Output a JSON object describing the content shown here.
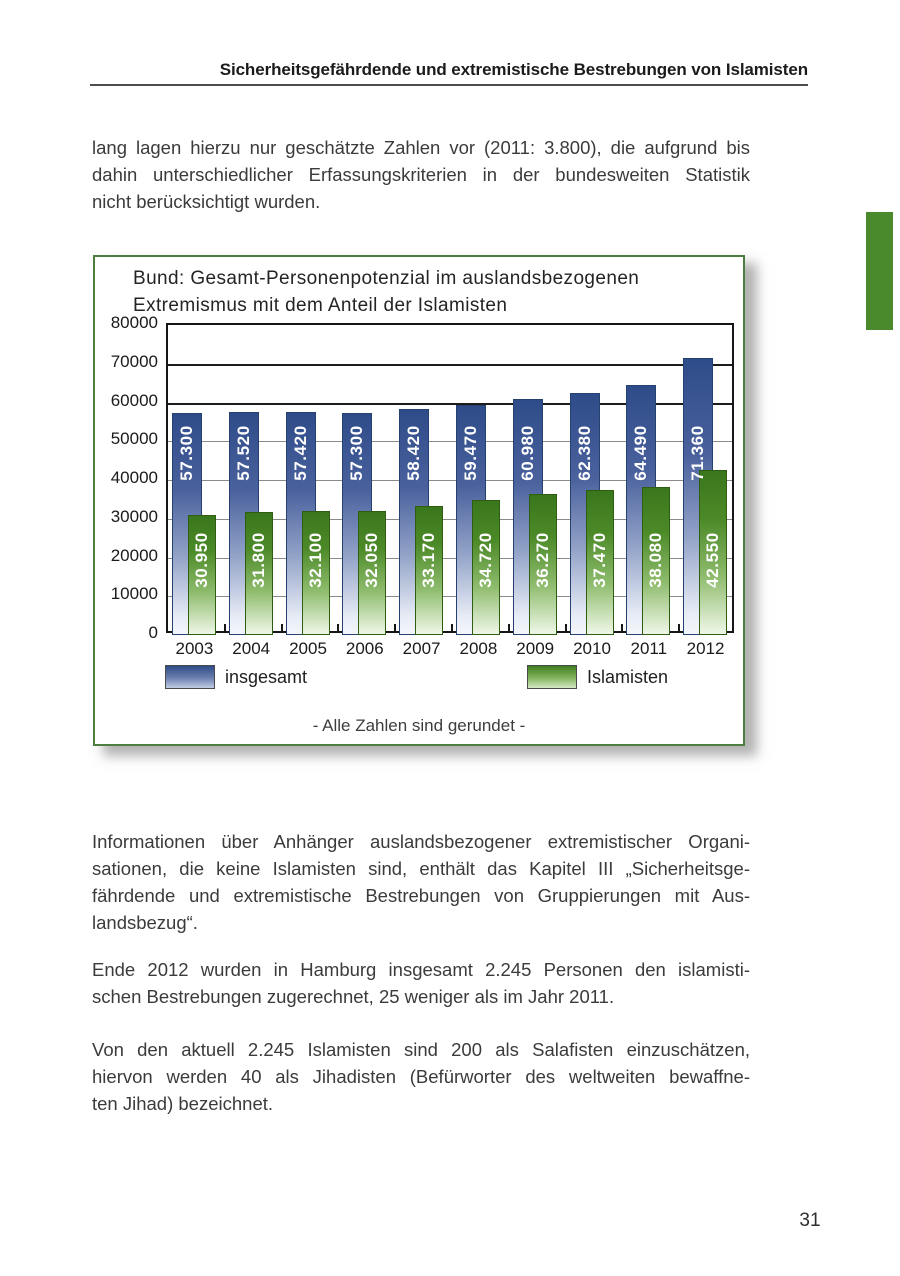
{
  "page": {
    "header": "Sicherheitsgefährdende und extremistische Bestrebungen von Islamisten",
    "page_number": "31",
    "paragraphs": [
      {
        "lines": [
          "lang lagen hierzu nur geschätzte Zahlen vor (2011: 3.800), die aufgrund bis",
          "dahin unterschiedlicher Erfassungskriterien in der bundesweiten Statistik",
          "nicht berücksichtigt wurden."
        ]
      },
      {
        "lines": [
          "Informationen über Anhänger auslandsbezogener extremistischer Organi-",
          "sationen, die keine Islamisten sind, enthält das Kapitel III „Sicherheitsge-",
          "fährdende und extremistische Bestrebungen von Gruppierungen mit Aus-",
          "landsbezug“."
        ]
      },
      {
        "lines": [
          "Ende 2012 wurden in Hamburg insgesamt 2.245 Personen den islamisti-",
          "schen Bestrebungen zugerechnet, 25 weniger als im Jahr 2011."
        ]
      },
      {
        "lines": [
          "Von den aktuell 2.245 Islamisten sind 200 als Salafisten einzuschätzen,",
          "hiervon werden 40 als Jihadisten (Befürworter des weltweiten bewaffne-",
          "ten Jihad) bezeichnet."
        ]
      }
    ]
  },
  "chart_data": {
    "type": "bar",
    "title": "Bund: Gesamt-Personenpotenzial im auslandsbezogenen Extremismus mit dem Anteil der Islamisten",
    "title_lines": [
      "Bund: Gesamt-Personenpotenzial im auslandsbezogenen",
      "Extremismus mit dem Anteil der Islamisten"
    ],
    "categories": [
      "2003",
      "2004",
      "2005",
      "2006",
      "2007",
      "2008",
      "2009",
      "2010",
      "2011",
      "2012"
    ],
    "series": [
      {
        "name": "insgesamt",
        "color": "#2e4c89",
        "values": [
          57300,
          57520,
          57420,
          57300,
          58420,
          59470,
          60980,
          62380,
          64490,
          71360
        ]
      },
      {
        "name": "Islamisten",
        "color": "#3f7d20",
        "values": [
          30950,
          31800,
          32100,
          32050,
          33170,
          34720,
          36270,
          37470,
          38080,
          42550
        ]
      }
    ],
    "ylim": [
      0,
      80000
    ],
    "ytick_step": 10000,
    "grid": true,
    "legend_position": "bottom",
    "footnote": "- Alle Zahlen sind gerundet -"
  }
}
